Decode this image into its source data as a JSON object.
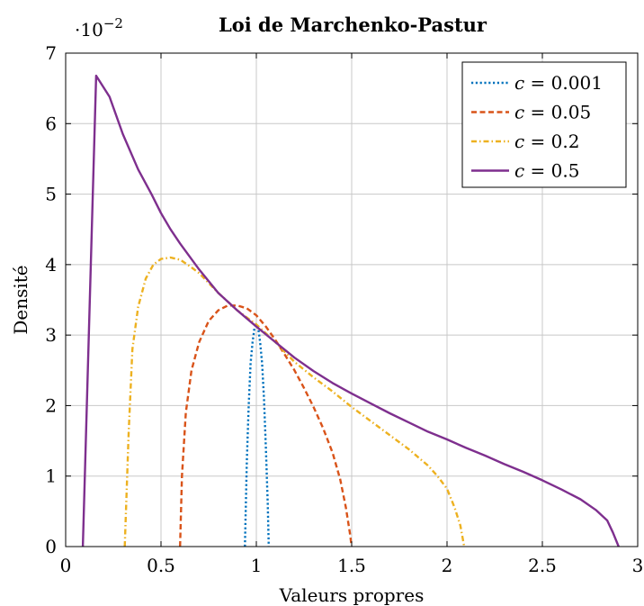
{
  "chart_data": {
    "type": "line",
    "title": "Loi de Marchenko-Pastur",
    "xlabel": "Valeurs propres",
    "ylabel": "Densité",
    "y_multiplier_base": "·10",
    "y_multiplier_exp": "−2",
    "xlim": [
      0,
      3
    ],
    "ylim": [
      0,
      7
    ],
    "grid": true,
    "legend_position": "top-right",
    "x_ticks": [
      0,
      0.5,
      1,
      1.5,
      2,
      2.5,
      3
    ],
    "x_tick_labels": [
      "0",
      "0.5",
      "1",
      "1.5",
      "2",
      "2.5",
      "3"
    ],
    "y_ticks": [
      0,
      1,
      2,
      3,
      4,
      5,
      6,
      7
    ],
    "y_tick_labels": [
      "0",
      "1",
      "2",
      "3",
      "4",
      "5",
      "6",
      "7"
    ],
    "series": [
      {
        "name": "c = 0.001",
        "label_lhs": "c",
        "label_rhs": " = 0.001",
        "color": "#0072bd",
        "style": "dotted",
        "points": [
          [
            0.94,
            0
          ],
          [
            0.95,
            1.2
          ],
          [
            0.96,
            2.0
          ],
          [
            0.97,
            2.6
          ],
          [
            0.98,
            2.9
          ],
          [
            0.99,
            3.1
          ],
          [
            1.0,
            3.15
          ],
          [
            1.01,
            3.1
          ],
          [
            1.02,
            2.9
          ],
          [
            1.03,
            2.6
          ],
          [
            1.04,
            2.1
          ],
          [
            1.05,
            1.4
          ],
          [
            1.06,
            0.6
          ],
          [
            1.065,
            0
          ]
        ]
      },
      {
        "name": "c = 0.05",
        "label_lhs": "c",
        "label_rhs": " = 0.05",
        "color": "#d95319",
        "style": "dashed",
        "points": [
          [
            0.6,
            0
          ],
          [
            0.61,
            1.0
          ],
          [
            0.63,
            1.9
          ],
          [
            0.66,
            2.5
          ],
          [
            0.7,
            2.9
          ],
          [
            0.75,
            3.2
          ],
          [
            0.8,
            3.35
          ],
          [
            0.85,
            3.42
          ],
          [
            0.9,
            3.42
          ],
          [
            0.95,
            3.38
          ],
          [
            1.0,
            3.28
          ],
          [
            1.05,
            3.12
          ],
          [
            1.1,
            2.93
          ],
          [
            1.15,
            2.72
          ],
          [
            1.2,
            2.5
          ],
          [
            1.25,
            2.25
          ],
          [
            1.3,
            1.98
          ],
          [
            1.35,
            1.68
          ],
          [
            1.4,
            1.33
          ],
          [
            1.44,
            0.95
          ],
          [
            1.47,
            0.55
          ],
          [
            1.49,
            0.2
          ],
          [
            1.5,
            0
          ]
        ]
      },
      {
        "name": "c = 0.2",
        "label_lhs": "c",
        "label_rhs": " = 0.2",
        "color": "#edb120",
        "style": "dashdot",
        "points": [
          [
            0.31,
            0
          ],
          [
            0.33,
            1.6
          ],
          [
            0.35,
            2.8
          ],
          [
            0.38,
            3.4
          ],
          [
            0.42,
            3.8
          ],
          [
            0.46,
            4.0
          ],
          [
            0.5,
            4.08
          ],
          [
            0.55,
            4.1
          ],
          [
            0.6,
            4.07
          ],
          [
            0.65,
            3.98
          ],
          [
            0.7,
            3.88
          ],
          [
            0.8,
            3.6
          ],
          [
            0.9,
            3.35
          ],
          [
            1.0,
            3.15
          ],
          [
            1.1,
            2.9
          ],
          [
            1.2,
            2.62
          ],
          [
            1.3,
            2.4
          ],
          [
            1.4,
            2.2
          ],
          [
            1.5,
            1.98
          ],
          [
            1.6,
            1.78
          ],
          [
            1.7,
            1.58
          ],
          [
            1.8,
            1.38
          ],
          [
            1.9,
            1.15
          ],
          [
            1.95,
            1.0
          ],
          [
            2.0,
            0.82
          ],
          [
            2.04,
            0.55
          ],
          [
            2.07,
            0.3
          ],
          [
            2.09,
            0
          ]
        ]
      },
      {
        "name": "c = 0.5",
        "label_lhs": "c",
        "label_rhs": " = 0.5",
        "color": "#7e2f8e",
        "style": "solid",
        "points": [
          [
            0.09,
            0
          ],
          [
            0.16,
            6.68
          ],
          [
            0.23,
            6.38
          ],
          [
            0.3,
            5.85
          ],
          [
            0.38,
            5.35
          ],
          [
            0.45,
            5.0
          ],
          [
            0.5,
            4.73
          ],
          [
            0.55,
            4.5
          ],
          [
            0.6,
            4.3
          ],
          [
            0.7,
            3.93
          ],
          [
            0.8,
            3.6
          ],
          [
            0.9,
            3.35
          ],
          [
            1.0,
            3.12
          ],
          [
            1.1,
            2.9
          ],
          [
            1.2,
            2.68
          ],
          [
            1.3,
            2.49
          ],
          [
            1.4,
            2.32
          ],
          [
            1.5,
            2.17
          ],
          [
            1.6,
            2.03
          ],
          [
            1.7,
            1.89
          ],
          [
            1.8,
            1.76
          ],
          [
            1.9,
            1.63
          ],
          [
            2.0,
            1.52
          ],
          [
            2.1,
            1.4
          ],
          [
            2.2,
            1.29
          ],
          [
            2.3,
            1.17
          ],
          [
            2.4,
            1.06
          ],
          [
            2.5,
            0.94
          ],
          [
            2.6,
            0.81
          ],
          [
            2.7,
            0.67
          ],
          [
            2.78,
            0.52
          ],
          [
            2.84,
            0.37
          ],
          [
            2.87,
            0.2
          ],
          [
            2.9,
            0
          ]
        ]
      }
    ]
  }
}
